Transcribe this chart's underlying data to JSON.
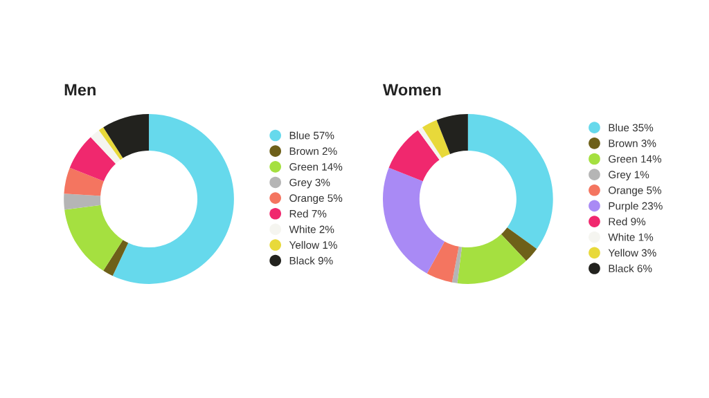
{
  "chart_data": [
    {
      "type": "donut",
      "title": "Men",
      "categories": [
        "Blue",
        "Brown",
        "Green",
        "Grey",
        "Orange",
        "Red",
        "White",
        "Yellow",
        "Black"
      ],
      "values": [
        57,
        2,
        14,
        3,
        5,
        7,
        2,
        1,
        9
      ],
      "value_labels": [
        "57%",
        "2%",
        "14%",
        "3%",
        "5%",
        "7%",
        "2%",
        "1%",
        "9%"
      ],
      "colors": [
        "#66d9ec",
        "#6e6019",
        "#a5e040",
        "#b5b5b5",
        "#f47560",
        "#f0286e",
        "#f5f5f0",
        "#e8d93a",
        "#22221e"
      ],
      "legend": "right"
    },
    {
      "type": "donut",
      "title": "Women",
      "categories": [
        "Blue",
        "Brown",
        "Green",
        "Grey",
        "Orange",
        "Purple",
        "Red",
        "White",
        "Yellow",
        "Black"
      ],
      "values": [
        35,
        3,
        14,
        1,
        5,
        23,
        9,
        1,
        3,
        6
      ],
      "value_labels": [
        "35%",
        "3%",
        "14%",
        "1%",
        "5%",
        "23%",
        "9%",
        "1%",
        "3%",
        "6%"
      ],
      "colors": [
        "#66d9ec",
        "#6e6019",
        "#a5e040",
        "#b5b5b5",
        "#f47560",
        "#a98af5",
        "#f0286e",
        "#f5f5f0",
        "#e8d93a",
        "#22221e"
      ],
      "legend": "right"
    }
  ]
}
